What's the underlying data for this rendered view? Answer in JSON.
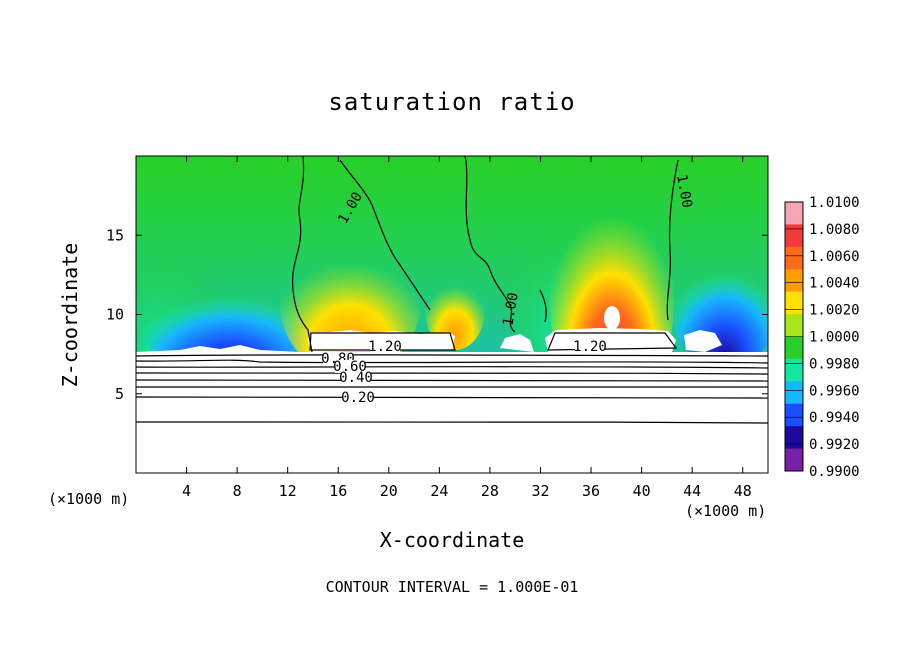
{
  "chart_data": {
    "type": "heatmap",
    "title": "saturation ratio",
    "xlabel": "X-coordinate",
    "ylabel": "Z-coordinate",
    "x_unit_label": "(×1000 m)",
    "xlim": [
      0,
      50
    ],
    "ylim": [
      0,
      20
    ],
    "x_ticks": [
      4,
      8,
      12,
      16,
      20,
      24,
      28,
      32,
      36,
      40,
      44,
      48
    ],
    "y_ticks": [
      5,
      10,
      15
    ],
    "colorbar": {
      "levels": [
        "1.0100",
        "1.0080",
        "1.0060",
        "1.0040",
        "1.0020",
        "1.0000",
        "0.9980",
        "0.9960",
        "0.9940",
        "0.9920",
        "0.9900"
      ],
      "colors": [
        "#f4a6b4",
        "#f23a3a",
        "#ff6a1a",
        "#ff9d00",
        "#ffe000",
        "#a8e61a",
        "#28cf28",
        "#13e6a0",
        "#18b6ff",
        "#1a4fff",
        "#1a0a9e",
        "#7a1fa8"
      ]
    },
    "contour_labels": [
      "1.00",
      "1.00",
      "1.00",
      "1.20",
      "1.20",
      "0.80",
      "0.60",
      "0.40",
      "0.20"
    ],
    "footer": "CONTOUR INTERVAL = 1.000E-01"
  }
}
